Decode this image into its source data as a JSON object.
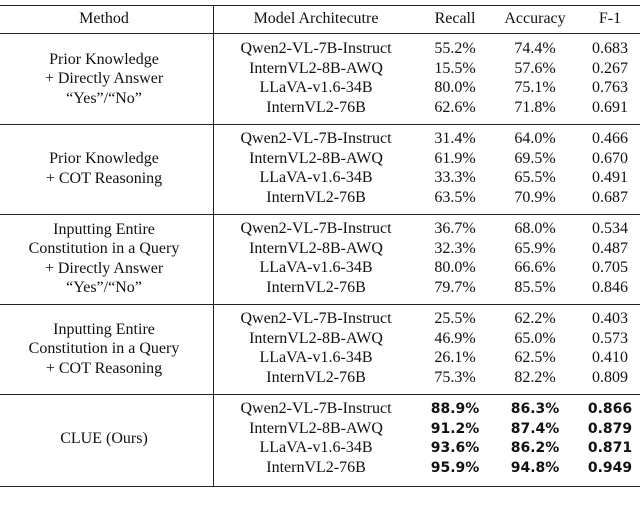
{
  "table": {
    "header": [
      "Method",
      "Model Architecutre",
      "Recall",
      "Accuracy",
      "F-1"
    ],
    "groups": [
      {
        "method": [
          "Prior Knowledge",
          "+ Directly Answer",
          "“Yes”/“No”"
        ],
        "rows": [
          [
            "Qwen2-VL-7B-Instruct",
            "55.2%",
            "74.4%",
            "0.683"
          ],
          [
            "InternVL2-8B-AWQ",
            "15.5%",
            "57.6%",
            "0.267"
          ],
          [
            "LLaVA-v1.6-34B",
            "80.0%",
            "75.1%",
            "0.763"
          ],
          [
            "InternVL2-76B",
            "62.6%",
            "71.8%",
            "0.691"
          ]
        ]
      },
      {
        "method": [
          "Prior Knowledge",
          "+ COT Reasoning"
        ],
        "rows": [
          [
            "Qwen2-VL-7B-Instruct",
            "31.4%",
            "64.0%",
            "0.466"
          ],
          [
            "InternVL2-8B-AWQ",
            "61.9%",
            "69.5%",
            "0.670"
          ],
          [
            "LLaVA-v1.6-34B",
            "33.3%",
            "65.5%",
            "0.491"
          ],
          [
            "InternVL2-76B",
            "63.5%",
            "70.9%",
            "0.687"
          ]
        ]
      },
      {
        "method": [
          "Inputting Entire",
          "Constitution in a Query",
          "+ Directly Answer",
          "“Yes”/“No”"
        ],
        "rows": [
          [
            "Qwen2-VL-7B-Instruct",
            "36.7%",
            "68.0%",
            "0.534"
          ],
          [
            "InternVL2-8B-AWQ",
            "32.3%",
            "65.9%",
            "0.487"
          ],
          [
            "LLaVA-v1.6-34B",
            "80.0%",
            "66.6%",
            "0.705"
          ],
          [
            "InternVL2-76B",
            "79.7%",
            "85.5%",
            "0.846"
          ]
        ]
      },
      {
        "method": [
          "Inputting Entire",
          "Constitution in a Query",
          "+ COT Reasoning"
        ],
        "rows": [
          [
            "Qwen2-VL-7B-Instruct",
            "25.5%",
            "62.2%",
            "0.403"
          ],
          [
            "InternVL2-8B-AWQ",
            "46.9%",
            "65.0%",
            "0.573"
          ],
          [
            "LLaVA-v1.6-34B",
            "26.1%",
            "62.5%",
            "0.410"
          ],
          [
            "InternVL2-76B",
            "75.3%",
            "82.2%",
            "0.809"
          ]
        ]
      },
      {
        "method": [
          "CLUE (Ours)"
        ],
        "bold": true,
        "rows": [
          [
            "Qwen2-VL-7B-Instruct",
            "88.9%",
            "86.3%",
            "0.866"
          ],
          [
            "InternVL2-8B-AWQ",
            "91.2%",
            "87.4%",
            "0.879"
          ],
          [
            "LLaVA-v1.6-34B",
            "93.6%",
            "86.2%",
            "0.871"
          ],
          [
            "InternVL2-76B",
            "95.9%",
            "94.8%",
            "0.949"
          ]
        ]
      }
    ]
  }
}
